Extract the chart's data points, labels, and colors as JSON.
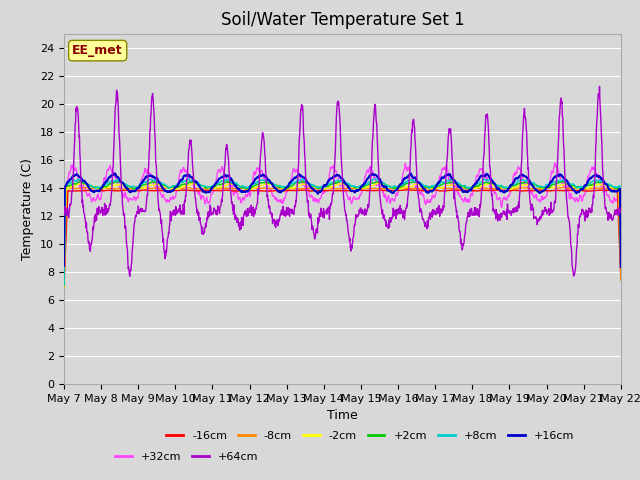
{
  "title": "Soil/Water Temperature Set 1",
  "xlabel": "Time",
  "ylabel": "Temperature (C)",
  "ylim": [
    0,
    25
  ],
  "xlim": [
    0,
    15
  ],
  "yticks": [
    0,
    2,
    4,
    6,
    8,
    10,
    12,
    14,
    16,
    18,
    20,
    22,
    24
  ],
  "xtick_labels": [
    "May 7",
    "May 8",
    "May 9",
    "May 10",
    "May 11",
    "May 12",
    "May 13",
    "May 14",
    "May 15",
    "May 16",
    "May 17",
    "May 18",
    "May 19",
    "May 20",
    "May 21",
    "May 22"
  ],
  "series_colors": [
    "#ff0000",
    "#ff8800",
    "#ffff00",
    "#00cc00",
    "#00cccc",
    "#0000cc",
    "#ff44ff",
    "#aa00cc"
  ],
  "series_labels": [
    "-16cm",
    "-8cm",
    "-2cm",
    "+2cm",
    "+8cm",
    "+16cm",
    "+32cm",
    "+64cm"
  ],
  "background_color": "#d8d8d8",
  "plot_bg_color": "#d8d8d8",
  "annotation_text": "EE_met",
  "annotation_bg": "#ffff99",
  "annotation_border": "#880000",
  "grid_color": "#c0c0c0",
  "title_fontsize": 12,
  "axis_fontsize": 9,
  "tick_fontsize": 8
}
